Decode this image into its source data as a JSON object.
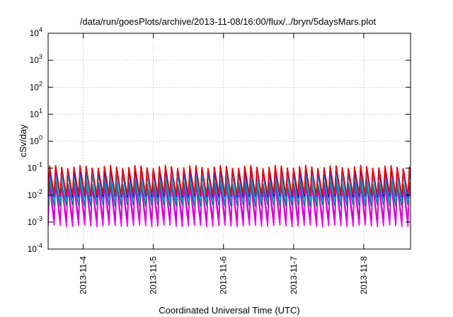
{
  "chart_data": {
    "type": "line",
    "title": "/data/run/goesPlots/archive/2013-11-08/16:00/flux/../bryn/5daysMars.plot",
    "xlabel": "Coordinated Universal Time (UTC)",
    "ylabel": "cSv/day",
    "y_scale": "log",
    "ylim": [
      0.0001,
      10000
    ],
    "y_ticks": [
      {
        "value": 0.0001,
        "base": "10",
        "exp": "-4"
      },
      {
        "value": 0.001,
        "base": "10",
        "exp": "-3"
      },
      {
        "value": 0.01,
        "base": "10",
        "exp": "-2"
      },
      {
        "value": 0.1,
        "base": "10",
        "exp": "-1"
      },
      {
        "value": 1,
        "base": "10",
        "exp": "0"
      },
      {
        "value": 10,
        "base": "10",
        "exp": "1"
      },
      {
        "value": 100,
        "base": "10",
        "exp": "2"
      },
      {
        "value": 1000,
        "base": "10",
        "exp": "3"
      },
      {
        "value": 10000,
        "base": "10",
        "exp": "4"
      }
    ],
    "xlim": [
      "2013-11-03T12:00",
      "2013-11-08T16:00"
    ],
    "x_ticks": [
      "2013-11-4",
      "2013-11-5",
      "2013-11-6",
      "2013-11-7",
      "2013-11-8"
    ],
    "x_tick_dates": [
      "2013-11-04T00:00",
      "2013-11-05T00:00",
      "2013-11-06T00:00",
      "2013-11-07T00:00",
      "2013-11-08T00:00"
    ],
    "grid": true,
    "cycles_per_day": 11.5,
    "series": [
      {
        "color": "#ff00ff",
        "peak": 0.022,
        "trough": 0.0007
      },
      {
        "color": "#cc00cc",
        "peak": 0.03,
        "trough": 0.0012
      },
      {
        "color": "#008080",
        "peak": 0.028,
        "trough": 0.004
      },
      {
        "color": "#00a0c0",
        "peak": 0.055,
        "trough": 0.0055
      },
      {
        "color": "#00c8d8",
        "peak": 0.075,
        "trough": 0.007
      },
      {
        "color": "#3355ee",
        "peak": 0.09,
        "trough": 0.008
      },
      {
        "color": "#0000ff",
        "peak": 0.1,
        "trough": 0.009
      },
      {
        "color": "#ff0000",
        "peak": 0.115,
        "trough": 0.01
      }
    ]
  }
}
